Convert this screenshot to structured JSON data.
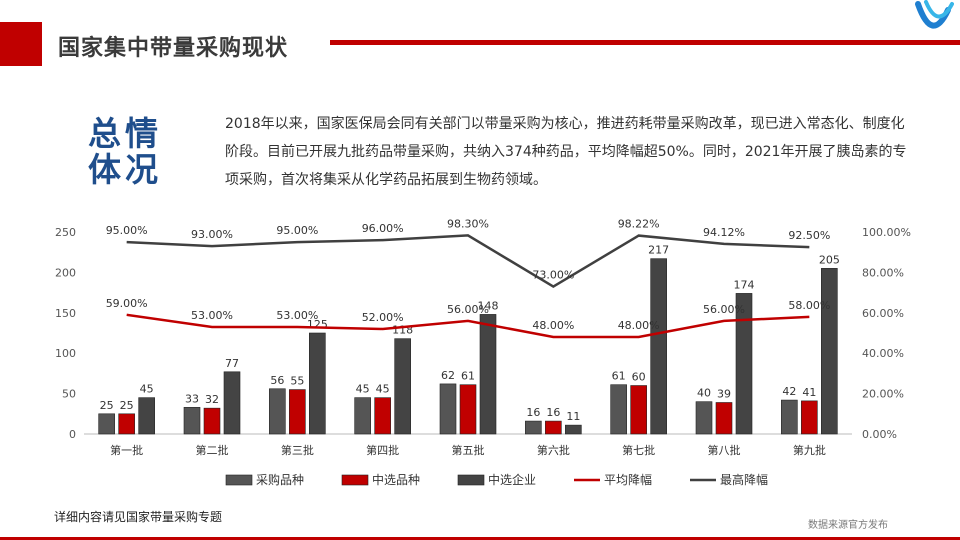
{
  "header": {
    "title": "国家集中带量采购现状"
  },
  "summary": {
    "heading_line1": "总情",
    "heading_line2": "体况",
    "paragraph": "2018年以来，国家医保局会同有关部门以带量采购为核心，推进药耗带量采购改革，现已进入常态化、制度化阶段。目前已开展九批药品带量采购，共纳入374种药品，平均降幅超50%。同时，2021年开展了胰岛素的专项采购，首次将集采从化学药品拓展到生物药领域。"
  },
  "footer": {
    "note": "详细内容请见国家带量采购专题",
    "source": "数据来源官方发布"
  },
  "colors": {
    "accent": "#c00000",
    "heading": "#1f4e8c"
  },
  "chart_data": {
    "type": "bar",
    "categories": [
      "第一批",
      "第二批",
      "第三批",
      "第四批",
      "第五批",
      "第六批",
      "第七批",
      "第八批",
      "第九批"
    ],
    "series": [
      {
        "name": "采购品种",
        "kind": "bar",
        "values": [
          25,
          33,
          56,
          45,
          62,
          16,
          61,
          40,
          42
        ],
        "labels": [
          "25",
          "33",
          "56",
          "45",
          "62",
          "16",
          "61",
          "40",
          "42"
        ],
        "color": "#555555"
      },
      {
        "name": "中选品种",
        "kind": "bar",
        "values": [
          25,
          32,
          55,
          45,
          61,
          16,
          60,
          39,
          41
        ],
        "labels": [
          "25",
          "32",
          "55",
          "45",
          "61",
          "16",
          "60",
          "39",
          "41"
        ],
        "color": "#c00000"
      },
      {
        "name": "中选企业",
        "kind": "bar",
        "values": [
          45,
          77,
          125,
          118,
          148,
          11,
          217,
          174,
          205
        ],
        "labels": [
          "45",
          "77",
          "125",
          "118",
          "148",
          "11",
          "217",
          "174",
          "205"
        ],
        "color": "#444444"
      },
      {
        "name": "平均降幅",
        "kind": "line",
        "axis": "right",
        "values": [
          59,
          53,
          53,
          52,
          56,
          48,
          48,
          56,
          58
        ],
        "labels": [
          "59.00%",
          "53.00%",
          "53.00%",
          "52.00%",
          "56.00%",
          "48.00%",
          "48.00%",
          "56.00%",
          "58.00%"
        ],
        "color": "#c00000"
      },
      {
        "name": "最高降幅",
        "kind": "line",
        "axis": "right",
        "values": [
          95,
          93,
          95,
          96,
          98.3,
          73,
          98.22,
          94.12,
          92.5
        ],
        "labels": [
          "95.00%",
          "93.00%",
          "95.00%",
          "96.00%",
          "98.30%",
          "73.00%",
          "98.22%",
          "94.12%",
          "92.50%"
        ],
        "color": "#404040"
      }
    ],
    "y_left": {
      "ylim": [
        0,
        250
      ],
      "ticks": [
        "0",
        "50",
        "100",
        "150",
        "200",
        "250"
      ]
    },
    "y_right": {
      "ylim": [
        0,
        100
      ],
      "ticks": [
        "0.00%",
        "20.00%",
        "40.00%",
        "60.00%",
        "80.00%",
        "100.00%"
      ]
    },
    "grid": false,
    "legend": "bottom"
  }
}
